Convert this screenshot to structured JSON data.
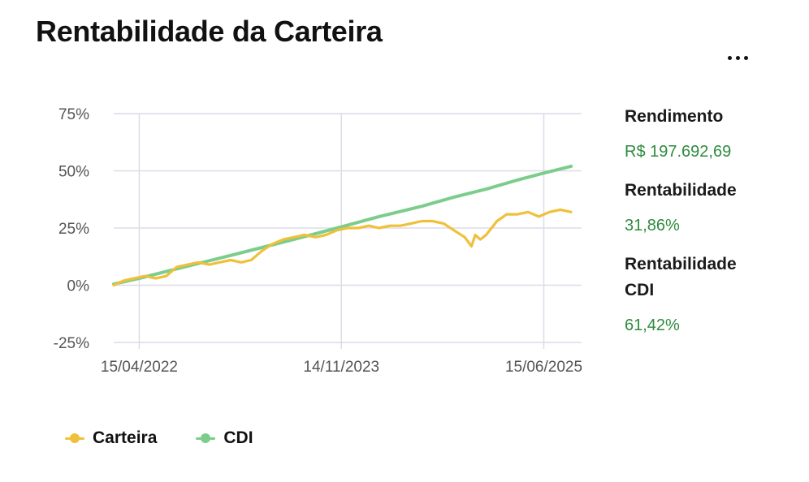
{
  "title": "Rentabilidade da Carteira",
  "menu_icon": "more-horizontal-icon",
  "stats": [
    {
      "label": "Rendimento",
      "value": "R$ 197.692,69"
    },
    {
      "label": "Rentabilidade",
      "value": "31,86%"
    },
    {
      "label": "Rentabilidade CDI",
      "value": "61,42%"
    }
  ],
  "legend": [
    {
      "label": "Carteira",
      "color": "#f0c03a"
    },
    {
      "label": "CDI",
      "color": "#7ccd8b"
    }
  ],
  "colors": {
    "carteira": "#f0c03a",
    "cdi": "#7ccd8b",
    "positive_value": "#2e8b3e",
    "grid": "#dcdce8"
  },
  "chart_data": {
    "type": "line",
    "title": "",
    "xlabel": "",
    "ylabel": "",
    "x_ticks": [
      "15/04/2022",
      "14/11/2023",
      "15/06/2025"
    ],
    "y_ticks": [
      "75%",
      "50%",
      "25%",
      "0%",
      "-25%"
    ],
    "y_tick_values": [
      75,
      50,
      25,
      0,
      -25
    ],
    "ylim": [
      -25,
      75
    ],
    "xlim": [
      "2022-02-01",
      "2025-10-01"
    ],
    "grid": true,
    "legend_position": "bottom-left",
    "series": [
      {
        "name": "Carteira",
        "color": "#f0c03a",
        "x": [
          "2022-02-01",
          "2022-03-01",
          "2022-04-01",
          "2022-05-01",
          "2022-06-01",
          "2022-07-01",
          "2022-08-01",
          "2022-09-01",
          "2022-10-01",
          "2022-11-01",
          "2022-12-01",
          "2023-01-01",
          "2023-02-01",
          "2023-03-01",
          "2023-04-01",
          "2023-05-01",
          "2023-06-01",
          "2023-07-01",
          "2023-08-01",
          "2023-09-01",
          "2023-10-01",
          "2023-11-01",
          "2023-12-01",
          "2024-01-01",
          "2024-02-01",
          "2024-03-01",
          "2024-04-01",
          "2024-05-01",
          "2024-06-01",
          "2024-07-01",
          "2024-08-01",
          "2024-09-01",
          "2024-10-01",
          "2024-11-01",
          "2024-11-20",
          "2024-12-01",
          "2024-12-15",
          "2025-01-01",
          "2025-02-01",
          "2025-03-01",
          "2025-04-01",
          "2025-05-01",
          "2025-06-01",
          "2025-07-01",
          "2025-08-01",
          "2025-09-01"
        ],
        "y": [
          0,
          2,
          3,
          4,
          3,
          4,
          8,
          9,
          10,
          9,
          10,
          11,
          10,
          11,
          15,
          18,
          20,
          21,
          22,
          21,
          22,
          24,
          25,
          25,
          26,
          25,
          26,
          26,
          27,
          28,
          28,
          27,
          24,
          21,
          17,
          22,
          20,
          22,
          28,
          31,
          31,
          32,
          30,
          32,
          33,
          32
        ]
      },
      {
        "name": "CDI",
        "color": "#7ccd8b",
        "x": [
          "2022-02-01",
          "2022-04-15",
          "2022-07-01",
          "2022-10-01",
          "2023-01-01",
          "2023-04-01",
          "2023-07-01",
          "2023-11-14",
          "2024-03-01",
          "2024-07-01",
          "2024-10-01",
          "2025-01-01",
          "2025-04-01",
          "2025-06-15",
          "2025-09-01"
        ],
        "y": [
          0.5,
          3,
          6,
          9.5,
          13,
          16.5,
          20,
          25.5,
          30,
          34.5,
          38.5,
          42,
          46,
          49,
          52
        ]
      }
    ]
  }
}
